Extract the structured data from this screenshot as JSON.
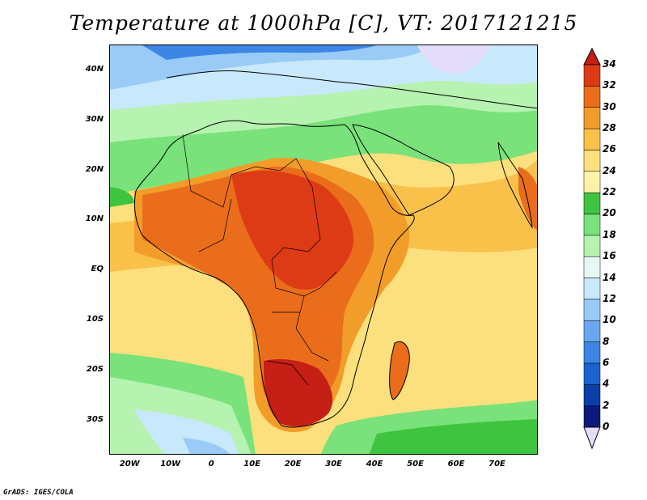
{
  "title": "Temperature at 1000hPa [C], VT: 2017121215",
  "credit": "GrADS: IGES/COLA",
  "map": {
    "lon_range": [
      -25,
      80
    ],
    "lat_range": [
      -37,
      45
    ],
    "lat_ticks": [
      {
        "value": 40,
        "label": "40N"
      },
      {
        "value": 30,
        "label": "30N"
      },
      {
        "value": 20,
        "label": "20N"
      },
      {
        "value": 10,
        "label": "10N"
      },
      {
        "value": 0,
        "label": "EQ"
      },
      {
        "value": -10,
        "label": "10S"
      },
      {
        "value": -20,
        "label": "20S"
      },
      {
        "value": -30,
        "label": "30S"
      }
    ],
    "lon_ticks": [
      {
        "value": -20,
        "label": "20W"
      },
      {
        "value": -10,
        "label": "10W"
      },
      {
        "value": 0,
        "label": "0"
      },
      {
        "value": 10,
        "label": "10E"
      },
      {
        "value": 20,
        "label": "20E"
      },
      {
        "value": 30,
        "label": "30E"
      },
      {
        "value": 40,
        "label": "40E"
      },
      {
        "value": 50,
        "label": "50E"
      },
      {
        "value": 60,
        "label": "60E"
      },
      {
        "value": 70,
        "label": "70E"
      }
    ]
  },
  "colorbar": {
    "levels": [
      0,
      2,
      4,
      6,
      8,
      10,
      12,
      14,
      16,
      18,
      20,
      22,
      24,
      26,
      28,
      30,
      32,
      34
    ],
    "colors": [
      "#0a1a7a",
      "#0d3fa8",
      "#1a63d1",
      "#3d86e5",
      "#69a8f0",
      "#9acbf7",
      "#c8e8fb",
      "#e6f8f5",
      "#b6f2b0",
      "#79e27a",
      "#3fc43f",
      "#fff3a8",
      "#fce07d",
      "#f9c04a",
      "#f29d29",
      "#ea6d1c",
      "#dd3b16",
      "#c51f16"
    ],
    "under_color": "#e3dcfb",
    "over_color": "#c51f16"
  }
}
